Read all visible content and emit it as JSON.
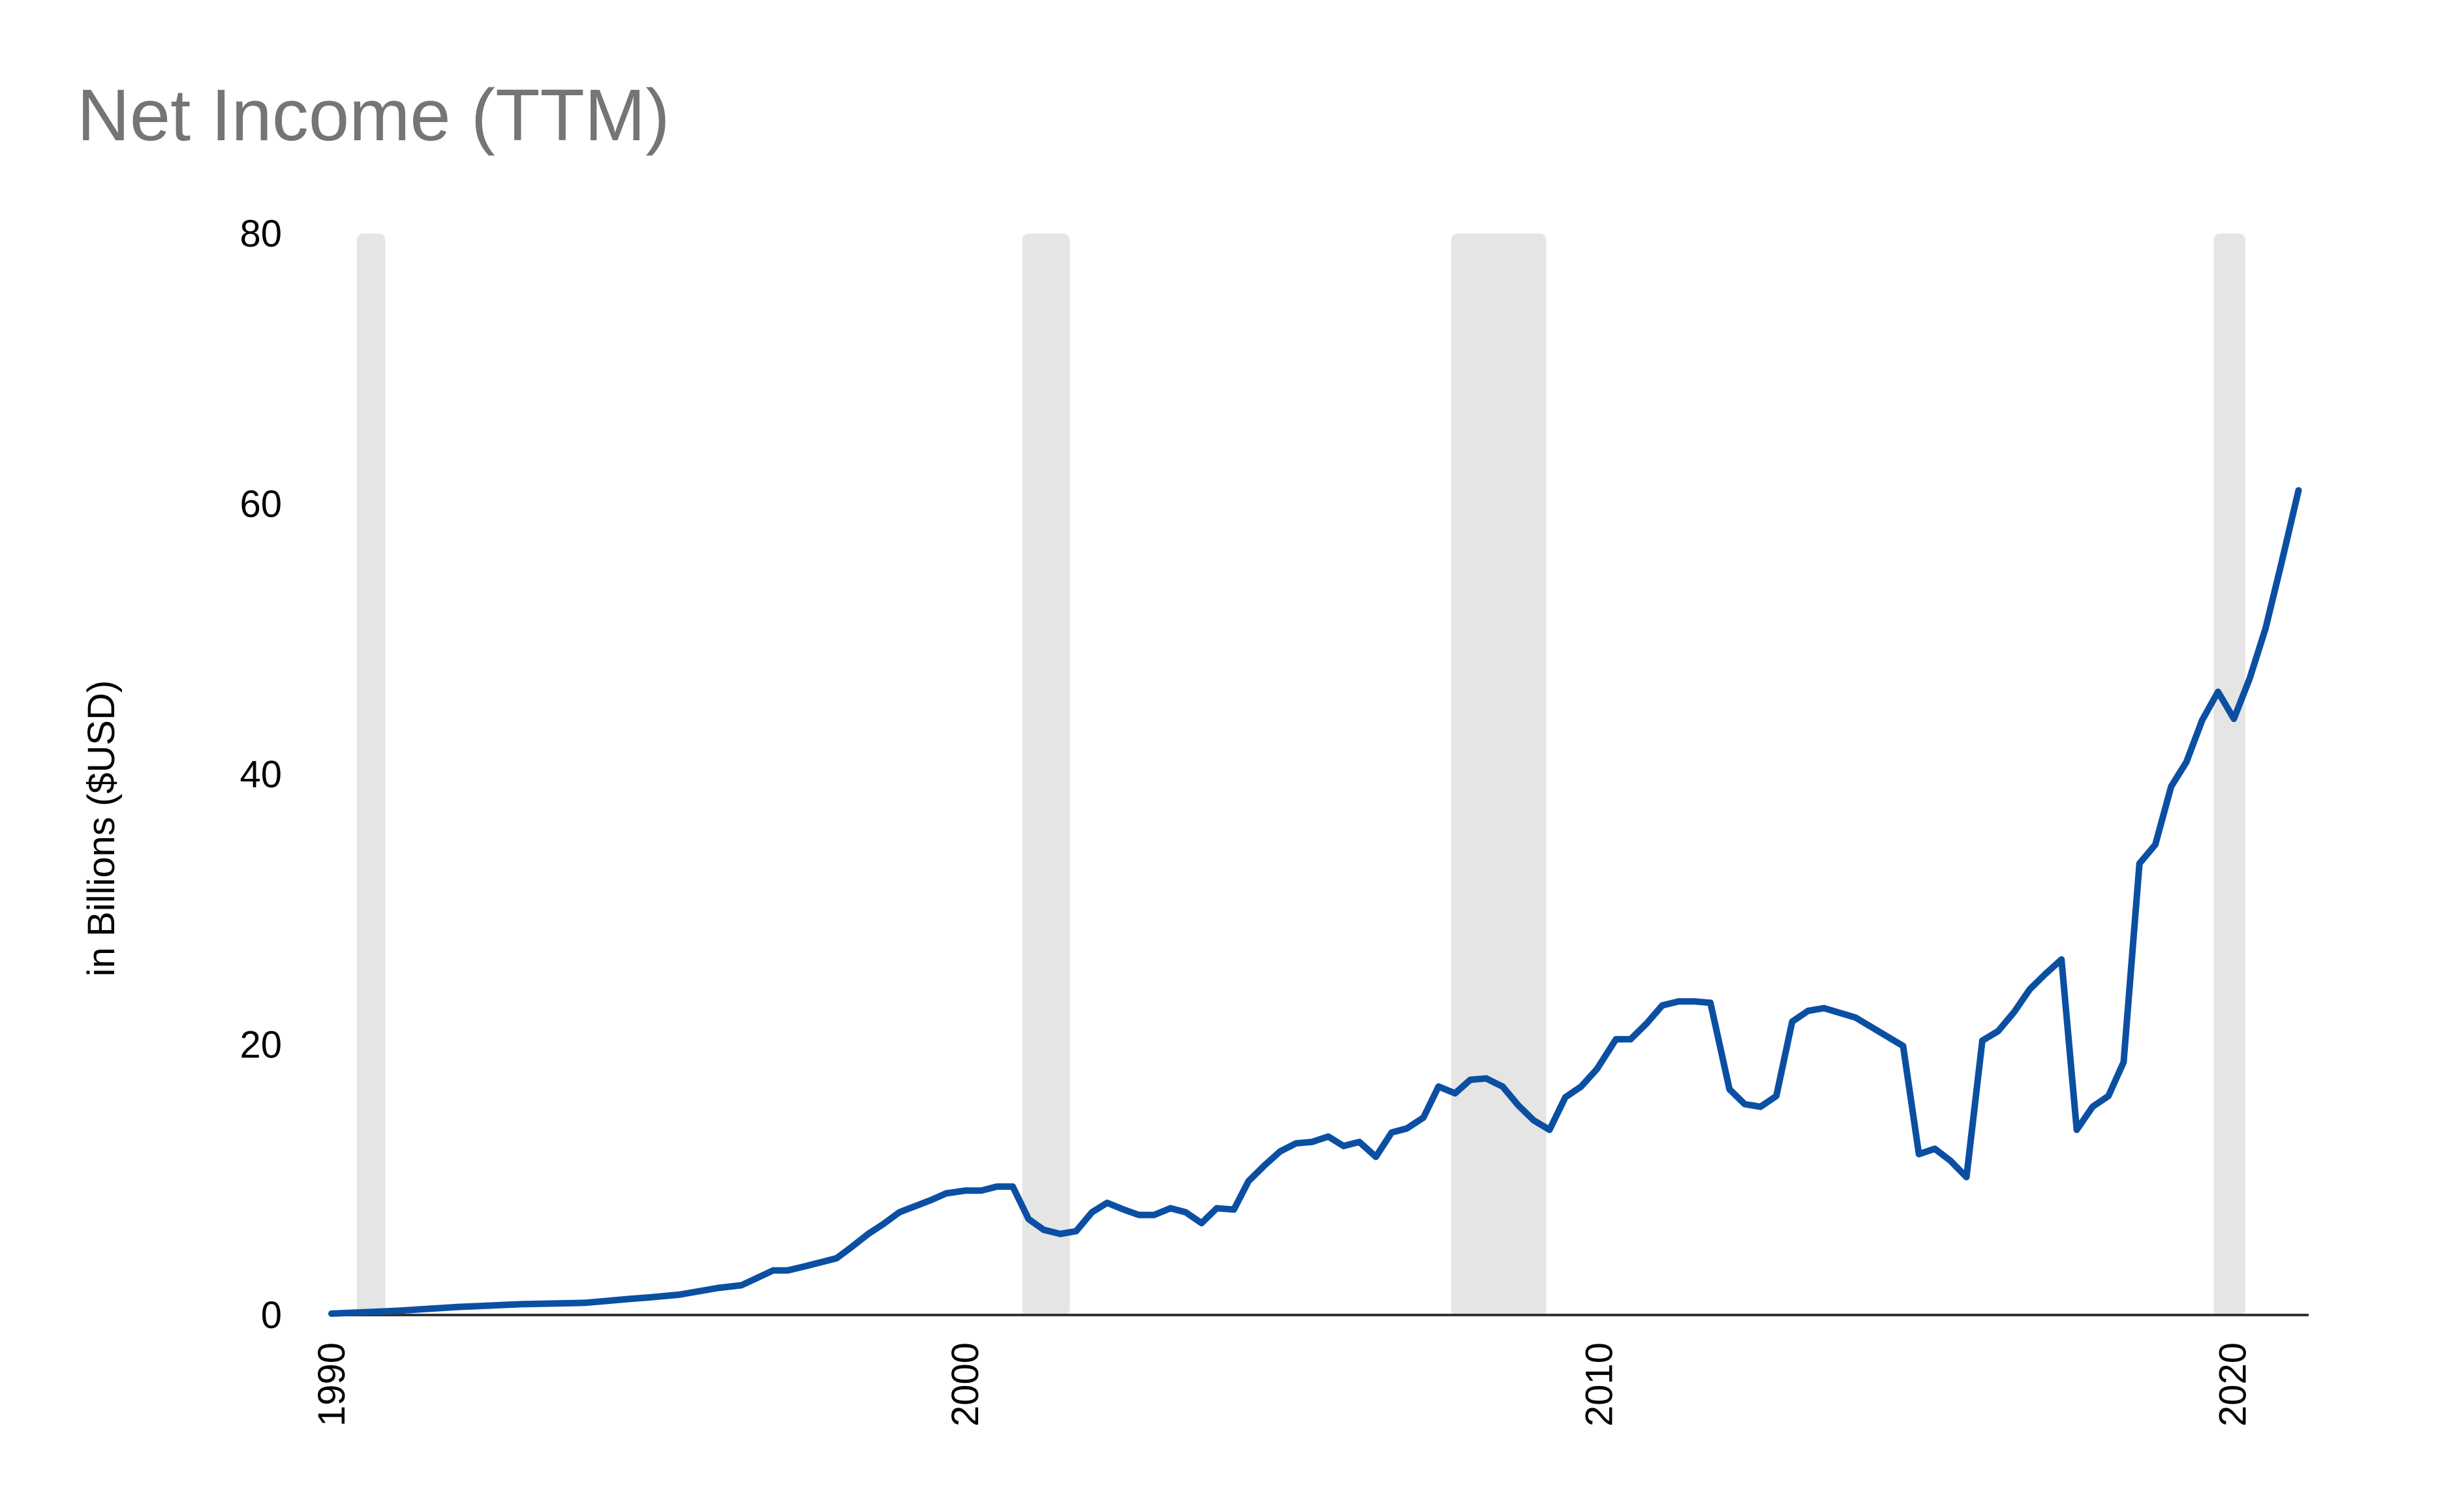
{
  "chart_data": {
    "type": "line",
    "title": "Net Income (TTM)",
    "y_label": "in Billions ($USD)",
    "x": [
      1990.0,
      1991.0,
      1992.0,
      1993.0,
      1994.0,
      1994.73,
      1995.0,
      1995.48,
      1996.1,
      1996.47,
      1996.97,
      1997.2,
      1997.47,
      1997.97,
      1998.2,
      1998.47,
      1998.7,
      1998.96,
      1999.46,
      1999.7,
      2000.0,
      2000.25,
      2000.5,
      2000.75,
      2001.0,
      2001.24,
      2001.5,
      2001.75,
      2002.0,
      2002.24,
      2002.5,
      2002.74,
      2002.98,
      2003.24,
      2003.48,
      2003.73,
      2003.97,
      2004.24,
      2004.47,
      2004.73,
      2004.97,
      2005.22,
      2005.47,
      2005.73,
      2005.97,
      2006.22,
      2006.48,
      2006.73,
      2006.97,
      2007.23,
      2007.47,
      2007.73,
      2007.97,
      2008.22,
      2008.48,
      2008.73,
      2008.97,
      2009.22,
      2009.47,
      2009.72,
      2009.97,
      2010.27,
      2010.5,
      2010.76,
      2011.0,
      2011.26,
      2011.5,
      2011.76,
      2012.06,
      2012.3,
      2012.55,
      2012.8,
      2013.05,
      2013.3,
      2013.55,
      2014.05,
      2014.8,
      2015.05,
      2015.3,
      2015.55,
      2015.8,
      2016.05,
      2016.3,
      2016.55,
      2016.8,
      2017.04,
      2017.3,
      2017.54,
      2017.79,
      2018.04,
      2018.28,
      2018.53,
      2018.78,
      2019.03,
      2019.27,
      2019.52,
      2019.77,
      2020.02,
      2020.27,
      2020.52,
      2020.77,
      2021.04
    ],
    "series": [
      {
        "name": "Net Income (TTM)",
        "color": "#0b4fa3",
        "values": [
          0.1,
          0.3,
          0.6,
          0.8,
          0.9,
          1.2,
          1.3,
          1.5,
          2.0,
          2.2,
          3.3,
          3.3,
          3.6,
          4.2,
          5.0,
          6.0,
          6.7,
          7.6,
          8.5,
          9.0,
          9.2,
          9.2,
          9.5,
          9.5,
          7.1,
          6.3,
          6.0,
          6.2,
          7.6,
          8.3,
          7.8,
          7.4,
          7.4,
          7.9,
          7.6,
          6.8,
          7.9,
          7.8,
          9.9,
          11.1,
          12.1,
          12.7,
          12.8,
          13.2,
          12.5,
          12.8,
          11.7,
          13.5,
          13.8,
          14.6,
          16.9,
          16.4,
          17.4,
          17.5,
          16.9,
          15.5,
          14.4,
          13.7,
          16.1,
          16.9,
          18.2,
          20.4,
          20.4,
          21.6,
          22.9,
          23.2,
          23.2,
          23.1,
          16.7,
          15.6,
          15.4,
          16.2,
          21.7,
          22.5,
          22.7,
          22.0,
          19.9,
          11.9,
          12.3,
          11.4,
          10.2,
          20.3,
          21.0,
          22.4,
          24.1,
          25.2,
          26.3,
          13.7,
          15.4,
          16.2,
          18.7,
          33.4,
          34.8,
          39.1,
          40.9,
          44.0,
          46.1,
          44.1,
          47.1,
          50.8,
          55.6,
          61.0
        ]
      }
    ],
    "shaded_periods": [
      [
        1990.4,
        1990.85
      ],
      [
        2000.9,
        2001.65
      ],
      [
        2007.67,
        2009.17
      ],
      [
        2019.7,
        2020.2
      ]
    ],
    "shade_color": "#e5e5e5",
    "xlim": [
      1990,
      2021.2
    ],
    "xticks": [
      1990,
      2000,
      2010,
      2020
    ],
    "ylim": [
      0,
      80
    ],
    "yticks": [
      0,
      20,
      40,
      60,
      80
    ],
    "grid": false
  }
}
